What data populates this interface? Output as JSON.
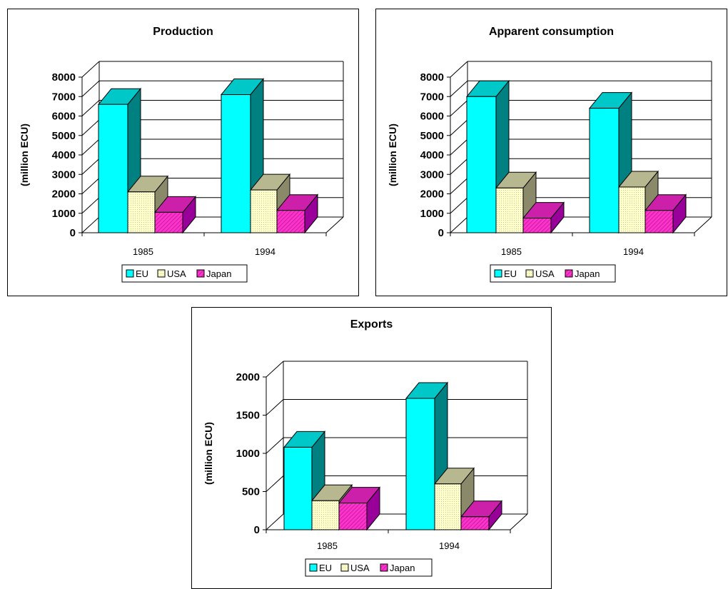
{
  "colors": {
    "EU": "#00ffff",
    "USA": "#ffffcc",
    "Japan": "#ff33cc"
  },
  "legend": {
    "series": [
      "EU",
      "USA",
      "Japan"
    ]
  },
  "chart_data": [
    {
      "type": "bar",
      "title": "Production",
      "ylabel": "(million ECU)",
      "categories": [
        "1985",
        "1994"
      ],
      "ylim": [
        0,
        8000
      ],
      "yticks": [
        "0",
        "1000",
        "2000",
        "3000",
        "4000",
        "5000",
        "6000",
        "7000",
        "8000"
      ],
      "grid": true,
      "legend_position": "bottom",
      "series": [
        {
          "name": "EU",
          "values": [
            6600,
            7100
          ]
        },
        {
          "name": "USA",
          "values": [
            2100,
            2200
          ]
        },
        {
          "name": "Japan",
          "values": [
            1050,
            1150
          ]
        }
      ]
    },
    {
      "type": "bar",
      "title": "Apparent consumption",
      "ylabel": "(million ECU)",
      "categories": [
        "1985",
        "1994"
      ],
      "ylim": [
        0,
        8000
      ],
      "yticks": [
        "0",
        "1000",
        "2000",
        "3000",
        "4000",
        "5000",
        "6000",
        "7000",
        "8000"
      ],
      "grid": true,
      "legend_position": "bottom",
      "series": [
        {
          "name": "EU",
          "values": [
            7000,
            6400
          ]
        },
        {
          "name": "USA",
          "values": [
            2300,
            2350
          ]
        },
        {
          "name": "Japan",
          "values": [
            750,
            1150
          ]
        }
      ]
    },
    {
      "type": "bar",
      "title": "Exports",
      "ylabel": "(million ECU)",
      "categories": [
        "1985",
        "1994"
      ],
      "ylim": [
        0,
        2000
      ],
      "yticks": [
        "0",
        "500",
        "1000",
        "1500",
        "2000"
      ],
      "grid": true,
      "legend_position": "bottom",
      "series": [
        {
          "name": "EU",
          "values": [
            1080,
            1720
          ]
        },
        {
          "name": "USA",
          "values": [
            380,
            600
          ]
        },
        {
          "name": "Japan",
          "values": [
            350,
            170
          ]
        }
      ]
    }
  ]
}
